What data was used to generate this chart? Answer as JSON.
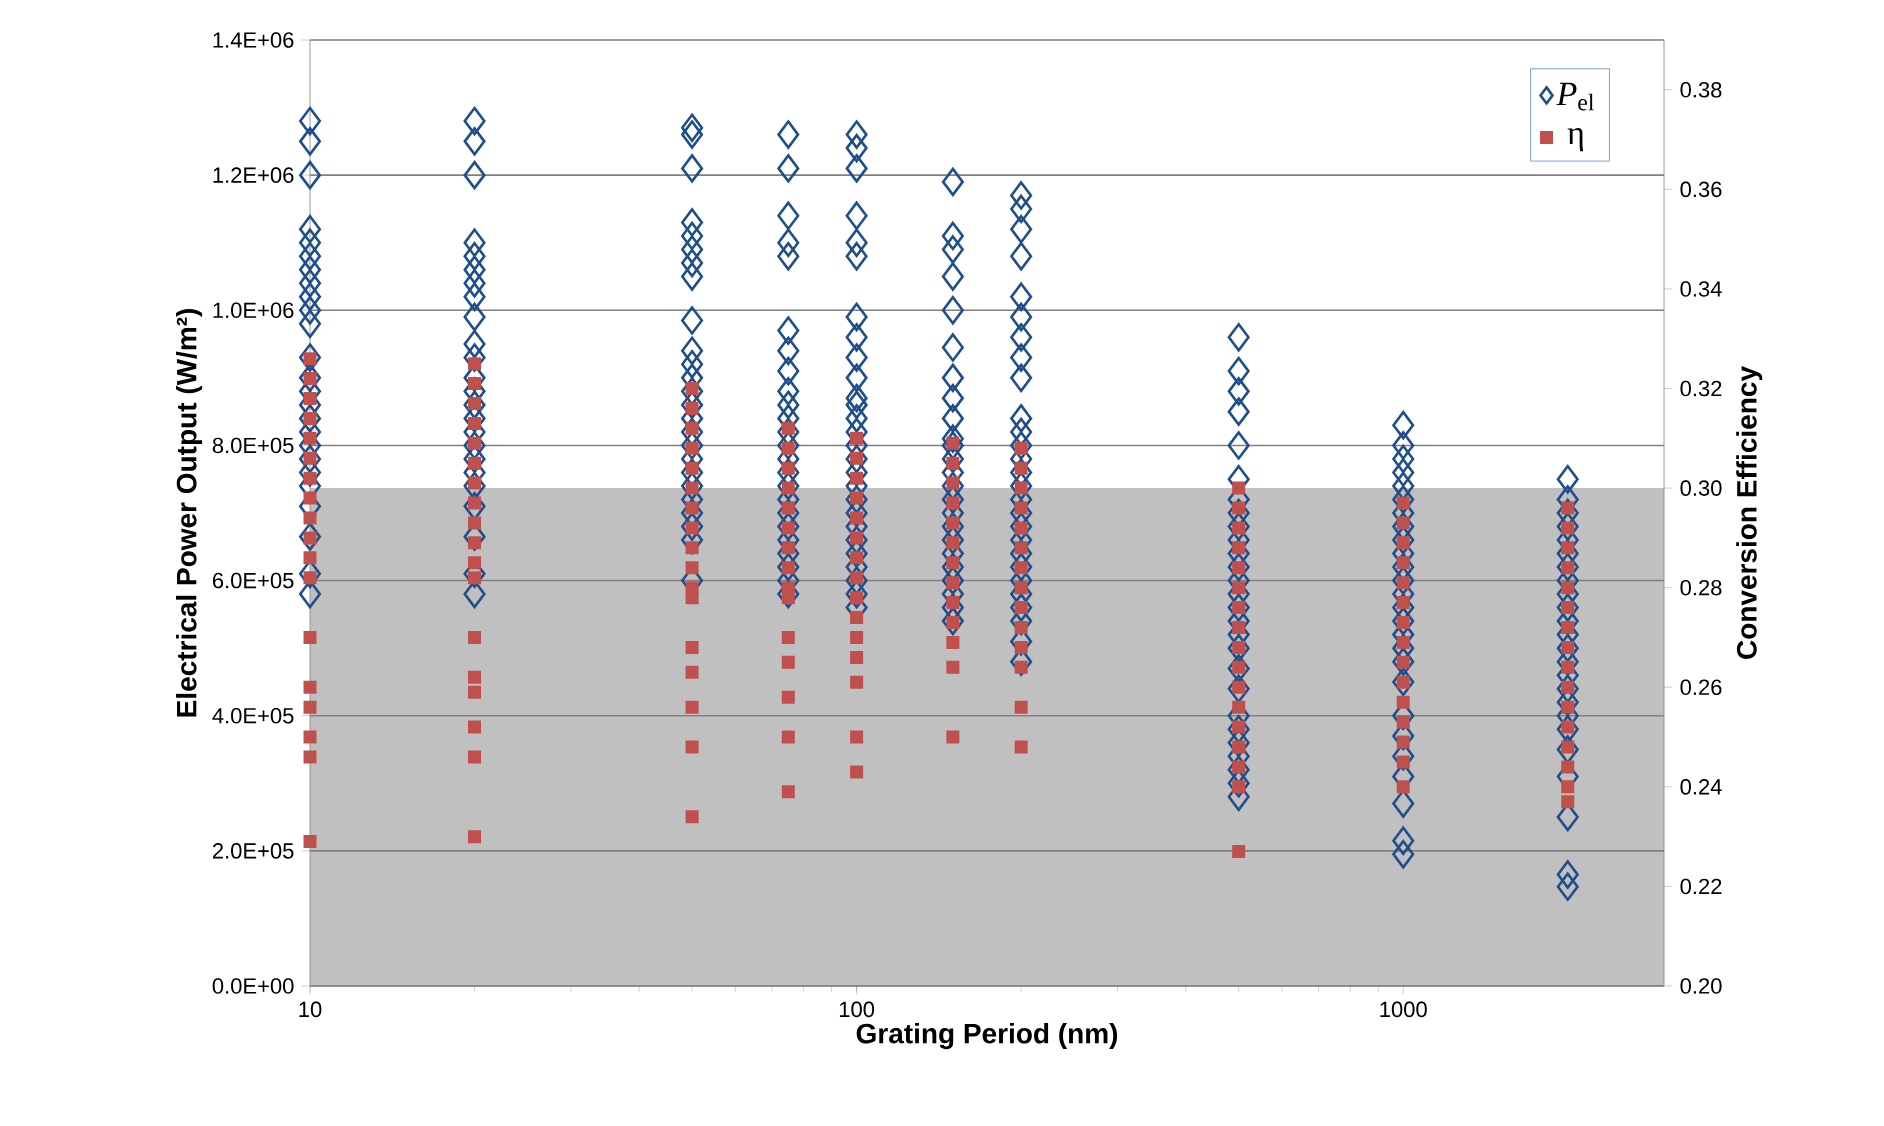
{
  "chart_data": {
    "type": "scatter",
    "xlabel": "Grating Period (nm)",
    "ylabel": "Electrical Power Output  (W/m²)",
    "y2label": "Conversion Efficiency",
    "log": "x",
    "grid": "y",
    "legend": "top right",
    "xlim": [
      10,
      3000
    ],
    "xticks": [
      10,
      100,
      1000
    ],
    "ylim": [
      0,
      1400000
    ],
    "yticks": [
      {
        "value": 0,
        "label": "0.0E+00"
      },
      {
        "value": 200000,
        "label": "2.0E+05"
      },
      {
        "value": 400000,
        "label": "4.0E+05"
      },
      {
        "value": 600000,
        "label": "6.0E+05"
      },
      {
        "value": 800000,
        "label": "8.0E+05"
      },
      {
        "value": 1000000,
        "label": "1.0E+06"
      },
      {
        "value": 1200000,
        "label": "1.2E+06"
      },
      {
        "value": 1400000,
        "label": "1.4E+06"
      }
    ],
    "y2lim": [
      0.2,
      0.39
    ],
    "y2ticks": [
      {
        "value": 0.2,
        "label": "0.20"
      },
      {
        "value": 0.22,
        "label": "0.22"
      },
      {
        "value": 0.24,
        "label": "0.24"
      },
      {
        "value": 0.26,
        "label": "0.26"
      },
      {
        "value": 0.28,
        "label": "0.28"
      },
      {
        "value": 0.3,
        "label": "0.30"
      },
      {
        "value": 0.32,
        "label": "0.32"
      },
      {
        "value": 0.34,
        "label": "0.34"
      },
      {
        "value": 0.36,
        "label": "0.36"
      },
      {
        "value": 0.38,
        "label": "0.38"
      }
    ],
    "bands": [
      {
        "axis": "y2",
        "from": 0.2,
        "to": 0.3,
        "color": "#c0c0c0"
      }
    ],
    "series": [
      {
        "name": "*P*$_{el}$",
        "color": "#1f4e8c",
        "marker": "diamond",
        "x": [
          10,
          10,
          10,
          10,
          10,
          10,
          10,
          10,
          10,
          10,
          10,
          10,
          10,
          10,
          10,
          10,
          10,
          10,
          10,
          10,
          10,
          10,
          10,
          10,
          10,
          20,
          20,
          20,
          20,
          20,
          20,
          20,
          20,
          20,
          20,
          20,
          20,
          20,
          20,
          20,
          20,
          20,
          20,
          20,
          20,
          20,
          20,
          20,
          20,
          50,
          50,
          50,
          50,
          50,
          50,
          50,
          50,
          50,
          50,
          50,
          50,
          50,
          50,
          50,
          50,
          50,
          50,
          50,
          50,
          50,
          50,
          50,
          50,
          50,
          75,
          75,
          75,
          75,
          75,
          75,
          75,
          75,
          75,
          75,
          75,
          75,
          75,
          75,
          75,
          75,
          75,
          75,
          75,
          75,
          75,
          75,
          75,
          75,
          100,
          100,
          100,
          100,
          100,
          100,
          100,
          100,
          100,
          100,
          100,
          100,
          100,
          100,
          100,
          100,
          100,
          100,
          100,
          100,
          100,
          100,
          100,
          100,
          100,
          100,
          100,
          150,
          150,
          150,
          150,
          150,
          150,
          150,
          150,
          150,
          150,
          150,
          150,
          150,
          150,
          150,
          150,
          150,
          150,
          150,
          150,
          150,
          150,
          150,
          150,
          200,
          200,
          200,
          200,
          200,
          200,
          200,
          200,
          200,
          200,
          200,
          200,
          200,
          200,
          200,
          200,
          200,
          200,
          200,
          200,
          200,
          200,
          200,
          200,
          200,
          200,
          200,
          500,
          500,
          500,
          500,
          500,
          500,
          500,
          500,
          500,
          500,
          500,
          500,
          500,
          500,
          500,
          500,
          500,
          500,
          500,
          500,
          500,
          500,
          500,
          500,
          500,
          500,
          500,
          1000,
          1000,
          1000,
          1000,
          1000,
          1000,
          1000,
          1000,
          1000,
          1000,
          1000,
          1000,
          1000,
          1000,
          1000,
          1000,
          1000,
          1000,
          1000,
          1000,
          1000,
          1000,
          1000,
          1000,
          1000,
          1000,
          2000,
          2000,
          2000,
          2000,
          2000,
          2000,
          2000,
          2000,
          2000,
          2000,
          2000,
          2000,
          2000,
          2000,
          2000,
          2000,
          2000,
          2000,
          2000,
          2000,
          2000,
          2000,
          2000,
          2000
        ],
        "values": [
          1280000,
          1250000,
          1200000,
          1120000,
          1100000,
          1080000,
          1060000,
          1040000,
          1020000,
          1000000,
          980000,
          930000,
          900000,
          880000,
          860000,
          840000,
          820000,
          800000,
          780000,
          760000,
          740000,
          710000,
          665000,
          610000,
          580000,
          1280000,
          1250000,
          1200000,
          1100000,
          1080000,
          1060000,
          1040000,
          1020000,
          990000,
          950000,
          930000,
          900000,
          880000,
          860000,
          840000,
          820000,
          800000,
          780000,
          760000,
          740000,
          710000,
          665000,
          610000,
          580000,
          1270000,
          1260000,
          1210000,
          1130000,
          1110000,
          1090000,
          1070000,
          1050000,
          985000,
          940000,
          920000,
          900000,
          880000,
          860000,
          840000,
          820000,
          800000,
          780000,
          760000,
          740000,
          720000,
          700000,
          680000,
          660000,
          600000,
          1260000,
          1210000,
          1140000,
          1100000,
          1080000,
          970000,
          940000,
          910000,
          880000,
          860000,
          840000,
          820000,
          800000,
          780000,
          760000,
          740000,
          720000,
          700000,
          680000,
          660000,
          640000,
          620000,
          600000,
          580000,
          1260000,
          1240000,
          1210000,
          1140000,
          1100000,
          1080000,
          990000,
          960000,
          930000,
          900000,
          870000,
          860000,
          840000,
          820000,
          800000,
          780000,
          760000,
          740000,
          720000,
          700000,
          680000,
          660000,
          640000,
          620000,
          600000,
          580000,
          560000,
          1190000,
          1110000,
          1090000,
          1050000,
          1000000,
          945000,
          900000,
          870000,
          840000,
          810000,
          800000,
          780000,
          760000,
          740000,
          720000,
          700000,
          680000,
          660000,
          640000,
          620000,
          600000,
          580000,
          560000,
          540000,
          1170000,
          1150000,
          1120000,
          1080000,
          1020000,
          990000,
          960000,
          930000,
          900000,
          840000,
          820000,
          800000,
          780000,
          760000,
          740000,
          720000,
          700000,
          680000,
          660000,
          640000,
          620000,
          600000,
          580000,
          560000,
          540000,
          510000,
          480000,
          960000,
          910000,
          880000,
          850000,
          800000,
          750000,
          720000,
          700000,
          680000,
          660000,
          640000,
          620000,
          600000,
          580000,
          560000,
          540000,
          520000,
          500000,
          470000,
          440000,
          400000,
          380000,
          360000,
          340000,
          320000,
          300000,
          280000,
          830000,
          800000,
          780000,
          760000,
          740000,
          720000,
          700000,
          680000,
          660000,
          640000,
          620000,
          600000,
          580000,
          560000,
          540000,
          520000,
          500000,
          480000,
          450000,
          400000,
          370000,
          340000,
          310000,
          270000,
          215000,
          195000,
          750000,
          720000,
          700000,
          680000,
          660000,
          640000,
          620000,
          600000,
          580000,
          560000,
          540000,
          520000,
          500000,
          480000,
          460000,
          440000,
          420000,
          400000,
          380000,
          350000,
          310000,
          250000,
          165000,
          147000
        ]
      },
      {
        "name": "η",
        "color": "#c0504d",
        "marker": "square",
        "axis": "y2",
        "x": [
          10,
          10,
          10,
          10,
          10,
          10,
          10,
          10,
          10,
          10,
          10,
          10,
          10,
          10,
          10,
          10,
          10,
          10,
          20,
          20,
          20,
          20,
          20,
          20,
          20,
          20,
          20,
          20,
          20,
          20,
          20,
          20,
          20,
          20,
          20,
          20,
          50,
          50,
          50,
          50,
          50,
          50,
          50,
          50,
          50,
          50,
          50,
          50,
          50,
          50,
          50,
          50,
          50,
          75,
          75,
          75,
          75,
          75,
          75,
          75,
          75,
          75,
          75,
          75,
          75,
          75,
          75,
          75,
          100,
          100,
          100,
          100,
          100,
          100,
          100,
          100,
          100,
          100,
          100,
          100,
          100,
          100,
          100,
          150,
          150,
          150,
          150,
          150,
          150,
          150,
          150,
          150,
          150,
          150,
          150,
          150,
          200,
          200,
          200,
          200,
          200,
          200,
          200,
          200,
          200,
          200,
          200,
          200,
          200,
          200,
          500,
          500,
          500,
          500,
          500,
          500,
          500,
          500,
          500,
          500,
          500,
          500,
          500,
          500,
          500,
          500,
          500,
          1000,
          1000,
          1000,
          1000,
          1000,
          1000,
          1000,
          1000,
          1000,
          1000,
          1000,
          1000,
          1000,
          1000,
          1000,
          2000,
          2000,
          2000,
          2000,
          2000,
          2000,
          2000,
          2000,
          2000,
          2000,
          2000,
          2000,
          2000,
          2000,
          2000,
          2000
        ],
        "values": [
          0.326,
          0.322,
          0.318,
          0.314,
          0.31,
          0.306,
          0.302,
          0.298,
          0.294,
          0.29,
          0.286,
          0.282,
          0.27,
          0.26,
          0.256,
          0.25,
          0.246,
          0.229,
          0.325,
          0.321,
          0.317,
          0.313,
          0.309,
          0.305,
          0.301,
          0.297,
          0.293,
          0.289,
          0.285,
          0.282,
          0.27,
          0.262,
          0.259,
          0.252,
          0.246,
          0.23,
          0.32,
          0.316,
          0.312,
          0.308,
          0.304,
          0.3,
          0.296,
          0.292,
          0.288,
          0.284,
          0.28,
          0.278,
          0.268,
          0.263,
          0.256,
          0.248,
          0.234,
          0.312,
          0.308,
          0.304,
          0.3,
          0.296,
          0.292,
          0.288,
          0.284,
          0.28,
          0.278,
          0.27,
          0.265,
          0.258,
          0.25,
          0.239,
          0.31,
          0.306,
          0.302,
          0.298,
          0.294,
          0.29,
          0.286,
          0.282,
          0.278,
          0.274,
          0.27,
          0.266,
          0.261,
          0.25,
          0.243,
          0.309,
          0.305,
          0.301,
          0.297,
          0.293,
          0.289,
          0.285,
          0.281,
          0.277,
          0.273,
          0.269,
          0.264,
          0.25,
          0.308,
          0.304,
          0.3,
          0.296,
          0.292,
          0.288,
          0.284,
          0.28,
          0.276,
          0.272,
          0.268,
          0.264,
          0.256,
          0.248,
          0.3,
          0.296,
          0.292,
          0.288,
          0.284,
          0.28,
          0.276,
          0.272,
          0.268,
          0.264,
          0.26,
          0.256,
          0.252,
          0.248,
          0.244,
          0.24,
          0.227,
          0.297,
          0.293,
          0.289,
          0.285,
          0.281,
          0.277,
          0.273,
          0.269,
          0.265,
          0.261,
          0.257,
          0.253,
          0.249,
          0.245,
          0.24,
          0.296,
          0.292,
          0.288,
          0.284,
          0.28,
          0.276,
          0.272,
          0.268,
          0.264,
          0.26,
          0.256,
          0.252,
          0.248,
          0.244,
          0.24,
          0.237
        ]
      }
    ]
  }
}
